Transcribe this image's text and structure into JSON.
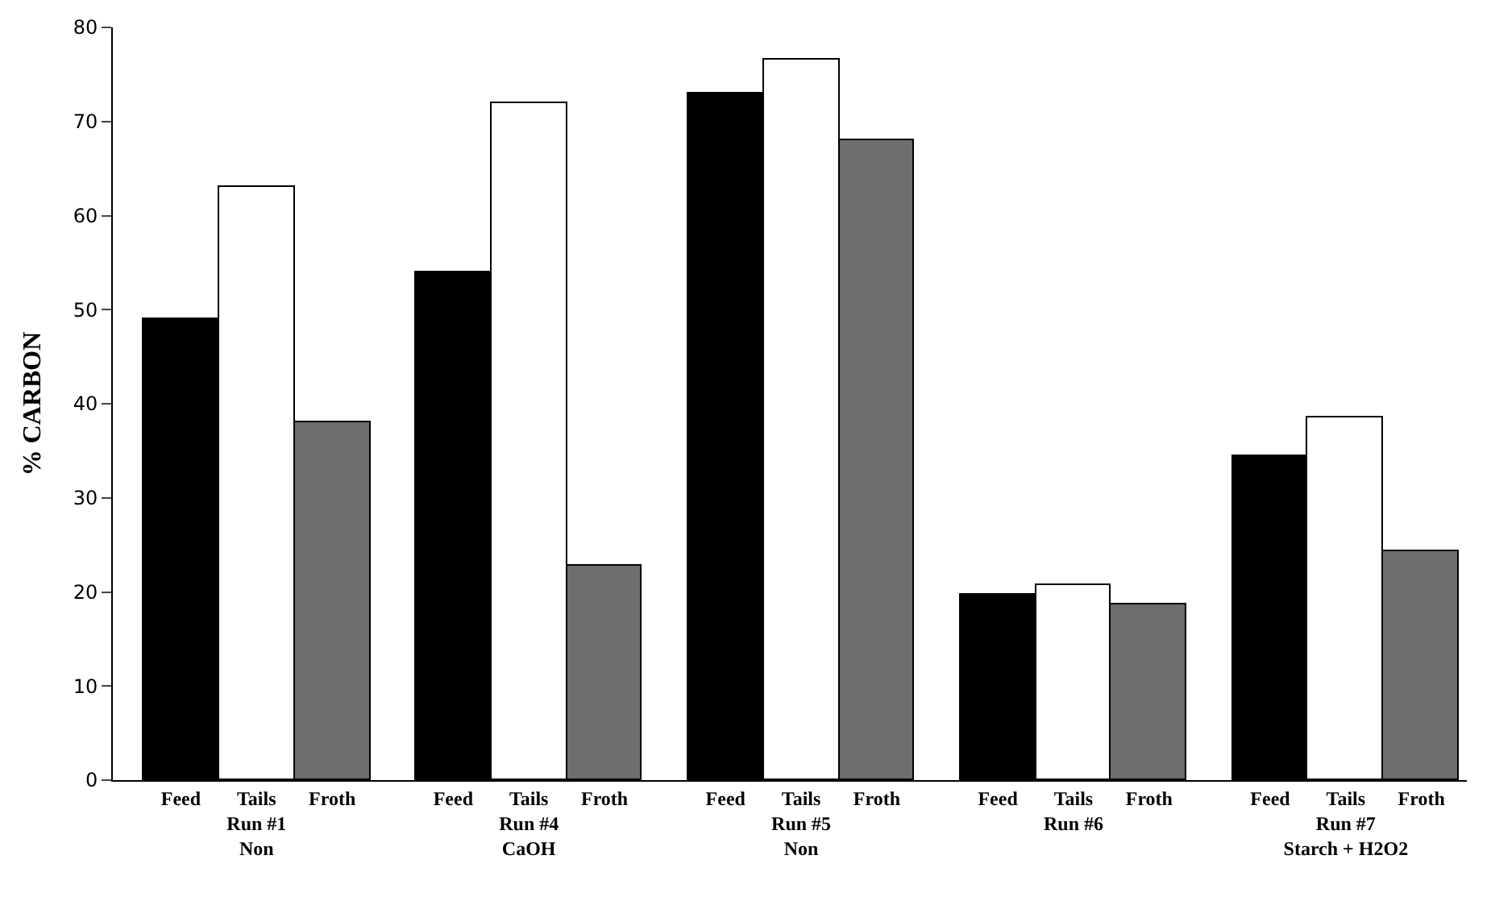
{
  "chart_data": {
    "type": "bar",
    "ylabel": "% CARBON",
    "categories": [
      "Feed",
      "Tails\nRun #1\nNon",
      "Froth",
      "Feed",
      "Tails\nRun #4\nCaOH",
      "Froth",
      "Feed",
      "Tails\nRun #5\nNon",
      "Froth",
      "Feed",
      "Tails\nRun #6",
      "Froth",
      "Feed",
      "Tails\nRun #7\nStarch + H2O2",
      "Froth"
    ],
    "values": [
      49,
      63,
      38,
      54,
      72,
      22.7,
      73,
      76.5,
      68,
      19.7,
      20.7,
      18.6,
      34.5,
      38.5,
      24.4
    ],
    "colors": [
      "#000000",
      "#ffffff",
      "#6e6e6e",
      "#000000",
      "#ffffff",
      "#6e6e6e",
      "#000000",
      "#ffffff",
      "#6e6e6e",
      "#000000",
      "#ffffff",
      "#6e6e6e",
      "#000000",
      "#ffffff",
      "#6e6e6e"
    ],
    "ylim": [
      0,
      80
    ],
    "yticks": [
      0,
      10,
      20,
      30,
      40,
      50,
      60,
      70,
      80
    ]
  }
}
